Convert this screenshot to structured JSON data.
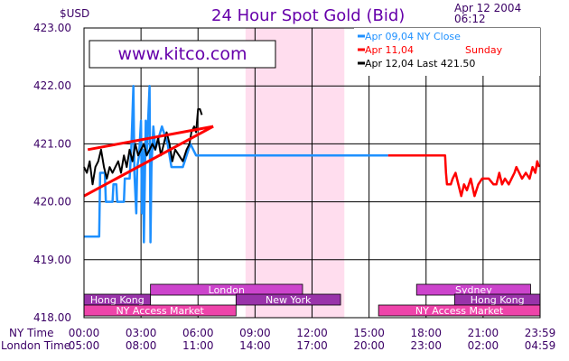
{
  "header": {
    "currency": "$USD",
    "title": "24 Hour Spot Gold (Bid)",
    "date": "Apr 12 2004",
    "time": "06:12",
    "watermark": "www.kitco.com"
  },
  "legend": [
    {
      "label": "Apr  09,04  NY  Close",
      "sub": "",
      "color": "#1e90ff"
    },
    {
      "label": "Apr  11,04",
      "sub": "Sunday",
      "color": "#ff0000"
    },
    {
      "label": "Apr  12,04  Last  421.50",
      "sub": "",
      "color": "#000000"
    }
  ],
  "axis_labels": {
    "ny": "NY Time",
    "london": "London Time",
    "ny_ticks": [
      "00:00",
      "03:00",
      "06:00",
      "09:00",
      "12:00",
      "15:00",
      "18:00",
      "21:00",
      "23:59"
    ],
    "london_ticks": [
      "05:00",
      "08:00",
      "11:00",
      "14:00",
      "17:00",
      "20:00",
      "23:00",
      "02:00",
      "04:59"
    ]
  },
  "sessions": [
    {
      "name": "London",
      "row": 1,
      "start": 3.5,
      "end": 11.5,
      "color": "#cc44cc"
    },
    {
      "name": "Sydney",
      "row": 1,
      "start": 17.5,
      "end": 23.5,
      "color": "#cc44cc"
    },
    {
      "name": "Hong  Kong",
      "row": 2,
      "start": 0,
      "end": 3.5,
      "color": "#9933aa"
    },
    {
      "name": "New  York",
      "row": 2,
      "start": 8,
      "end": 13.5,
      "color": "#9933aa"
    },
    {
      "name": "Hong  Kong",
      "row": 2,
      "start": 19.5,
      "end": 24,
      "color": "#9933aa"
    },
    {
      "name": "NY  Access  Market",
      "row": 3,
      "start": 0,
      "end": 8,
      "color": "#ee44aa"
    },
    {
      "name": "NY  Access  Market",
      "row": 3,
      "start": 15.5,
      "end": 24,
      "color": "#ee44aa"
    }
  ],
  "colors": {
    "grid": "#000000",
    "axis_text": "#3b0066",
    "title": "#6600aa",
    "shade": "#ffddee",
    "trend": "#ff0000"
  },
  "chart_data": {
    "type": "line",
    "title": "24 Hour Spot Gold (Bid)",
    "xlabel": "NY Time / London Time",
    "ylabel": "$USD",
    "ylim": [
      418.0,
      423.0
    ],
    "xlim": [
      0,
      24
    ],
    "yticks": [
      418.0,
      419.0,
      420.0,
      421.0,
      422.0,
      423.0
    ],
    "yticklabels": [
      "418.00",
      "419.00",
      "420.00",
      "421.00",
      "422.00",
      "423.00"
    ],
    "shaded_region": [
      8.5,
      13.7
    ],
    "grid": true,
    "legend_position": "top-right",
    "series": [
      {
        "name": "Apr 09,04 NY Close",
        "color": "#1e90ff",
        "points": [
          [
            0,
            419.4
          ],
          [
            0.8,
            419.4
          ],
          [
            0.85,
            420.5
          ],
          [
            1.1,
            420.5
          ],
          [
            1.15,
            420.0
          ],
          [
            1.5,
            420.0
          ],
          [
            1.55,
            420.3
          ],
          [
            1.7,
            420.3
          ],
          [
            1.75,
            420.0
          ],
          [
            2.1,
            420.0
          ],
          [
            2.15,
            420.4
          ],
          [
            2.4,
            420.4
          ],
          [
            2.5,
            421.0
          ],
          [
            2.6,
            422.0
          ],
          [
            2.65,
            420.5
          ],
          [
            2.75,
            419.8
          ],
          [
            2.8,
            420.6
          ],
          [
            2.9,
            420.8
          ],
          [
            3.0,
            421.4
          ],
          [
            3.05,
            419.8
          ],
          [
            3.1,
            420.9
          ],
          [
            3.15,
            419.3
          ],
          [
            3.2,
            420.3
          ],
          [
            3.25,
            421.4
          ],
          [
            3.3,
            420.8
          ],
          [
            3.45,
            422.0
          ],
          [
            3.5,
            419.3
          ],
          [
            3.55,
            420.6
          ],
          [
            3.65,
            421.3
          ],
          [
            3.75,
            420.9
          ],
          [
            4.1,
            421.3
          ],
          [
            4.2,
            421.2
          ],
          [
            4.4,
            421.0
          ],
          [
            4.6,
            420.6
          ],
          [
            5.2,
            420.6
          ],
          [
            5.4,
            420.8
          ],
          [
            5.6,
            421.0
          ],
          [
            5.9,
            420.8
          ],
          [
            13.5,
            420.8
          ],
          [
            16.0,
            420.8
          ]
        ]
      },
      {
        "name": "Apr 11,04",
        "color": "#ff0000",
        "points": [
          [
            16.0,
            420.8
          ],
          [
            19.0,
            420.8
          ],
          [
            19.05,
            420.5
          ],
          [
            19.1,
            420.3
          ],
          [
            19.3,
            420.3
          ],
          [
            19.4,
            420.4
          ],
          [
            19.55,
            420.5
          ],
          [
            19.7,
            420.3
          ],
          [
            19.85,
            420.1
          ],
          [
            20.0,
            420.3
          ],
          [
            20.15,
            420.2
          ],
          [
            20.35,
            420.4
          ],
          [
            20.55,
            420.1
          ],
          [
            20.75,
            420.3
          ],
          [
            20.95,
            420.4
          ],
          [
            21.3,
            420.4
          ],
          [
            21.55,
            420.3
          ],
          [
            21.7,
            420.3
          ],
          [
            21.85,
            420.5
          ],
          [
            22.0,
            420.3
          ],
          [
            22.15,
            420.4
          ],
          [
            22.35,
            420.3
          ],
          [
            22.5,
            420.4
          ],
          [
            22.65,
            420.5
          ],
          [
            22.75,
            420.6
          ],
          [
            22.9,
            420.5
          ],
          [
            23.05,
            420.4
          ],
          [
            23.25,
            420.5
          ],
          [
            23.45,
            420.4
          ],
          [
            23.6,
            420.6
          ],
          [
            23.75,
            420.5
          ],
          [
            23.85,
            420.7
          ],
          [
            23.95,
            420.6
          ]
        ]
      },
      {
        "name": "Apr 12,04 Last 421.50",
        "color": "#000000",
        "points": [
          [
            0,
            420.6
          ],
          [
            0.15,
            420.5
          ],
          [
            0.3,
            420.7
          ],
          [
            0.45,
            420.3
          ],
          [
            0.6,
            420.6
          ],
          [
            0.75,
            420.7
          ],
          [
            0.9,
            420.9
          ],
          [
            1.05,
            420.6
          ],
          [
            1.2,
            420.4
          ],
          [
            1.35,
            420.6
          ],
          [
            1.5,
            420.5
          ],
          [
            1.65,
            420.6
          ],
          [
            1.8,
            420.7
          ],
          [
            1.95,
            420.5
          ],
          [
            2.1,
            420.8
          ],
          [
            2.25,
            420.6
          ],
          [
            2.4,
            420.9
          ],
          [
            2.55,
            420.7
          ],
          [
            2.7,
            421.0
          ],
          [
            2.85,
            420.8
          ],
          [
            3.0,
            420.9
          ],
          [
            3.15,
            421.0
          ],
          [
            3.3,
            420.8
          ],
          [
            3.45,
            420.9
          ],
          [
            3.6,
            421.0
          ],
          [
            3.75,
            420.9
          ],
          [
            3.9,
            421.1
          ],
          [
            4.05,
            420.8
          ],
          [
            4.2,
            421.0
          ],
          [
            4.35,
            421.2
          ],
          [
            4.5,
            421.0
          ],
          [
            4.65,
            420.7
          ],
          [
            4.8,
            420.9
          ],
          [
            5.0,
            420.8
          ],
          [
            5.2,
            420.7
          ],
          [
            5.4,
            420.9
          ],
          [
            5.55,
            421.0
          ],
          [
            5.65,
            421.2
          ],
          [
            5.8,
            421.3
          ],
          [
            5.9,
            421.2
          ],
          [
            6.0,
            421.6
          ],
          [
            6.1,
            421.6
          ],
          [
            6.2,
            421.5
          ]
        ]
      },
      {
        "name": "Trend upper",
        "color": "#ff0000",
        "points": [
          [
            0.2,
            420.9
          ],
          [
            6.8,
            421.3
          ]
        ]
      },
      {
        "name": "Trend lower",
        "color": "#ff0000",
        "points": [
          [
            0,
            420.1
          ],
          [
            6.8,
            421.3
          ]
        ]
      }
    ]
  }
}
